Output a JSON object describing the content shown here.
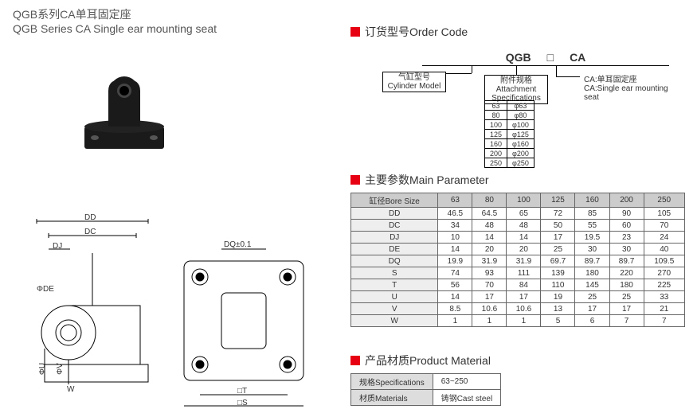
{
  "title": {
    "cn": "QGB系列CA单耳固定座",
    "en": "QGB Series CA Single ear mounting seat"
  },
  "sections": {
    "order_code": "订货型号Order Code",
    "main_param": "主要参数Main Parameter",
    "material": "产品材质Product Material"
  },
  "order_code": {
    "segments": [
      "QGB",
      "□",
      "CA"
    ],
    "cylinder_model": {
      "cn": "气缸型号",
      "en": "Cylinder Model"
    },
    "attachment": {
      "cn": "附件规格",
      "en": "Attachment",
      "en2": "Specifications"
    },
    "ca_desc": {
      "cn": "CA:单耳固定座",
      "en": "CA:Single ear mounting seat"
    },
    "spec_rows": [
      [
        "63",
        "φ63"
      ],
      [
        "80",
        "φ80"
      ],
      [
        "100",
        "φ100"
      ],
      [
        "125",
        "φ125"
      ],
      [
        "160",
        "φ160"
      ],
      [
        "200",
        "φ200"
      ],
      [
        "250",
        "φ250"
      ]
    ]
  },
  "param_table": {
    "header_label": "缸径Bore Size",
    "columns": [
      "63",
      "80",
      "100",
      "125",
      "160",
      "200",
      "250"
    ],
    "rows": [
      {
        "label": "DD",
        "vals": [
          "46.5",
          "64.5",
          "65",
          "72",
          "85",
          "90",
          "105"
        ]
      },
      {
        "label": "DC",
        "vals": [
          "34",
          "48",
          "48",
          "50",
          "55",
          "60",
          "70"
        ]
      },
      {
        "label": "DJ",
        "vals": [
          "10",
          "14",
          "14",
          "17",
          "19.5",
          "23",
          "24"
        ]
      },
      {
        "label": "DE",
        "vals": [
          "14",
          "20",
          "20",
          "25",
          "30",
          "30",
          "40"
        ]
      },
      {
        "label": "DQ",
        "vals": [
          "19.9",
          "31.9",
          "31.9",
          "69.7",
          "89.7",
          "89.7",
          "109.5"
        ]
      },
      {
        "label": "S",
        "vals": [
          "74",
          "93",
          "111",
          "139",
          "180",
          "220",
          "270"
        ]
      },
      {
        "label": "T",
        "vals": [
          "56",
          "70",
          "84",
          "110",
          "145",
          "180",
          "225"
        ]
      },
      {
        "label": "U",
        "vals": [
          "14",
          "17",
          "17",
          "19",
          "25",
          "25",
          "33"
        ]
      },
      {
        "label": "V",
        "vals": [
          "8.5",
          "10.6",
          "10.6",
          "13",
          "17",
          "17",
          "21"
        ]
      },
      {
        "label": "W",
        "vals": [
          "1",
          "1",
          "1",
          "5",
          "6",
          "7",
          "7"
        ]
      }
    ]
  },
  "material_table": {
    "rows": [
      {
        "label": "规格Specifications",
        "val": "63~250"
      },
      {
        "label": "材质Materials",
        "val": "铸钢Cast steel"
      }
    ]
  },
  "drawing_labels": {
    "dd": "DD",
    "dc": "DC",
    "dj": "DJ",
    "de": "ΦDE",
    "dq": "DQ±0.1",
    "u": "ΦU",
    "v": "ΦV",
    "w": "W",
    "t": "□T",
    "s": "□S"
  },
  "colors": {
    "accent": "#e60012",
    "header_bg": "#cccccc",
    "border": "#666666"
  }
}
